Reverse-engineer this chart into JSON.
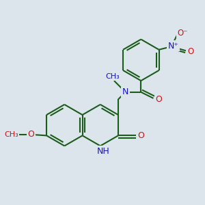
{
  "bg_color": "#dde5ec",
  "bond_color": "#1a5c1a",
  "bond_width": 1.5,
  "n_color": "#1414cc",
  "o_color": "#cc1414",
  "figsize": [
    3.0,
    3.0
  ],
  "dpi": 100,
  "xlim": [
    0.0,
    6.5
  ],
  "ylim": [
    0.0,
    7.0
  ]
}
